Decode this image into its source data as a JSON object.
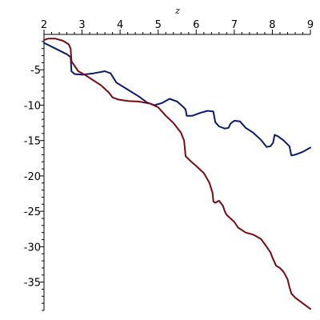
{
  "chart_data": {
    "type": "line",
    "xlabel": "z",
    "ylabel": "",
    "xlim": [
      2,
      9
    ],
    "ylim": [
      -39,
      0
    ],
    "x_ticks": [
      2,
      3,
      4,
      5,
      6,
      7,
      8,
      9
    ],
    "x_tick_labels": [
      "2",
      "3",
      "4",
      "5",
      "6",
      "7",
      "8",
      "9"
    ],
    "y_ticks": [
      -5,
      -10,
      -15,
      -20,
      -25,
      -30,
      -35
    ],
    "y_tick_labels": [
      "-5",
      "-10",
      "-15",
      "-20",
      "-25",
      "-30",
      "-35"
    ],
    "x_axis_position": "top",
    "grid": false,
    "legend": "none",
    "series": [
      {
        "color": "#0a1a6e",
        "x": [
          2.0,
          2.3,
          2.6,
          2.7,
          2.72,
          2.8,
          3.0,
          3.3,
          3.6,
          3.75,
          3.9,
          4.2,
          4.5,
          4.7,
          4.9,
          5.1,
          5.3,
          5.5,
          5.65,
          5.72,
          5.75,
          5.9,
          6.1,
          6.3,
          6.45,
          6.5,
          6.6,
          6.75,
          6.85,
          6.9,
          7.0,
          7.15,
          7.3,
          7.5,
          7.7,
          7.85,
          7.95,
          8.02,
          8.06,
          8.15,
          8.3,
          8.45,
          8.5,
          8.6,
          8.8,
          9.0
        ],
        "y": [
          -1.2,
          -2.0,
          -2.8,
          -3.2,
          -5.2,
          -5.6,
          -5.7,
          -5.5,
          -5.2,
          -5.5,
          -6.8,
          -7.8,
          -8.8,
          -9.6,
          -10.0,
          -9.7,
          -9.1,
          -9.5,
          -10.2,
          -10.6,
          -11.5,
          -11.5,
          -11.1,
          -10.8,
          -10.9,
          -12.4,
          -13.0,
          -13.3,
          -13.2,
          -12.6,
          -12.2,
          -12.3,
          -13.2,
          -13.9,
          -14.9,
          -15.9,
          -15.8,
          -15.3,
          -14.2,
          -14.4,
          -15.0,
          -15.8,
          -17.1,
          -17.0,
          -16.6,
          -16.0
        ]
      },
      {
        "color": "#7a0a12",
        "x": [
          2.0,
          2.1,
          2.3,
          2.5,
          2.65,
          2.7,
          2.72,
          2.9,
          3.1,
          3.3,
          3.5,
          3.7,
          3.8,
          3.95,
          4.2,
          4.5,
          4.8,
          5.0,
          5.2,
          5.4,
          5.6,
          5.68,
          5.7,
          5.72,
          5.85,
          6.0,
          6.2,
          6.35,
          6.43,
          6.45,
          6.5,
          6.6,
          6.7,
          6.75,
          6.8,
          6.9,
          7.0,
          7.1,
          7.3,
          7.5,
          7.7,
          7.85,
          7.95,
          8.0,
          8.1,
          8.2,
          8.3,
          8.4,
          8.45,
          8.5,
          8.6,
          8.8,
          9.0
        ],
        "y": [
          -0.8,
          -0.6,
          -0.6,
          -0.9,
          -1.4,
          -2.0,
          -3.8,
          -5.2,
          -5.8,
          -6.5,
          -7.2,
          -8.2,
          -8.9,
          -9.2,
          -9.4,
          -9.5,
          -9.8,
          -10.3,
          -11.5,
          -12.5,
          -13.9,
          -15.0,
          -16.0,
          -17.2,
          -17.9,
          -18.6,
          -19.6,
          -21.0,
          -22.4,
          -23.6,
          -23.8,
          -23.5,
          -24.2,
          -25.0,
          -25.5,
          -26.0,
          -26.5,
          -27.3,
          -28.0,
          -28.3,
          -28.9,
          -30.0,
          -30.8,
          -31.5,
          -32.7,
          -33.0,
          -33.6,
          -34.6,
          -35.7,
          -36.6,
          -37.2,
          -38.0,
          -38.8
        ]
      }
    ]
  }
}
